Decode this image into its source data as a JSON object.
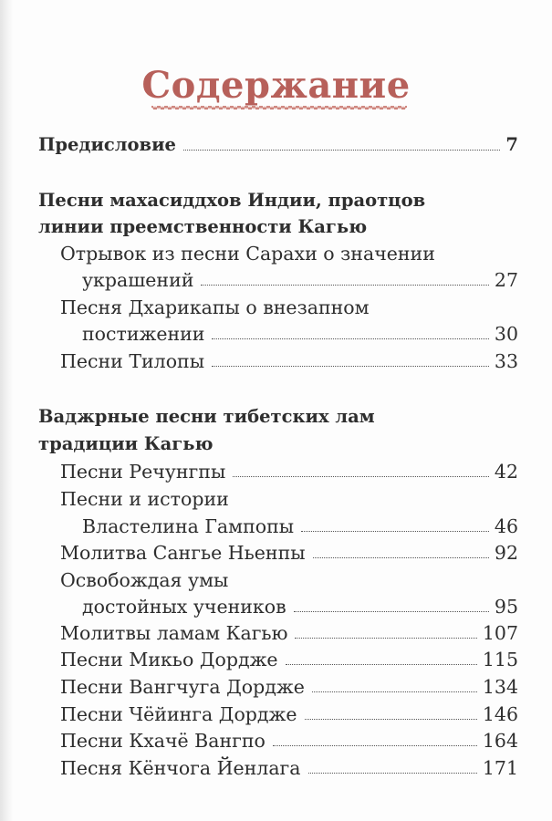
{
  "title": "Содержание",
  "entries": [
    {
      "text": "Предисловие",
      "page": "7",
      "bold": true,
      "indent": 0
    },
    {
      "text": "Песни махасиддхов Индии, праотцов",
      "page": "",
      "bold": true,
      "indent": 0
    },
    {
      "text": "линии преемственности Кагью",
      "page": "",
      "bold": true,
      "indent": 0
    },
    {
      "text": "Отрывок из песни Сарахи о значении",
      "page": "",
      "bold": false,
      "indent": 1
    },
    {
      "text": "украшений",
      "page": "27",
      "bold": false,
      "indent": 2
    },
    {
      "text": "Песня Дхарикапы о внезапном",
      "page": "",
      "bold": false,
      "indent": 1
    },
    {
      "text": "постижении",
      "page": "30",
      "bold": false,
      "indent": 2
    },
    {
      "text": "Песни Тилопы",
      "page": "33",
      "bold": false,
      "indent": 1
    },
    {
      "text": "Ваджрные песни тибетских лам",
      "page": "",
      "bold": true,
      "indent": 0
    },
    {
      "text": "традиции Кагью",
      "page": "",
      "bold": true,
      "indent": 0
    },
    {
      "text": "Песни Речунгпы",
      "page": "42",
      "bold": false,
      "indent": 1
    },
    {
      "text": "Песни и истории",
      "page": "",
      "bold": false,
      "indent": 1
    },
    {
      "text": "Властелина Гампопы",
      "page": "46",
      "bold": false,
      "indent": 2
    },
    {
      "text": "Молитва Сангье Ньенпы",
      "page": "92",
      "bold": false,
      "indent": 1
    },
    {
      "text": "Освобождая умы",
      "page": "",
      "bold": false,
      "indent": 1
    },
    {
      "text": "достойных учеников",
      "page": "95",
      "bold": false,
      "indent": 2
    },
    {
      "text": "Молитвы ламам Кагью",
      "page": "107",
      "bold": false,
      "indent": 1
    },
    {
      "text": "Песни Микьо Дордже",
      "page": "115",
      "bold": false,
      "indent": 1
    },
    {
      "text": "Песни Вангчуга Дордже",
      "page": "134",
      "bold": false,
      "indent": 1
    },
    {
      "text": "Песни Чёйинга Дордже",
      "page": "146",
      "bold": false,
      "indent": 1
    },
    {
      "text": "Песни Кхачё Вангпо",
      "page": "164",
      "bold": false,
      "indent": 1
    },
    {
      "text": "Песня Кёнчога Йенлага",
      "page": "171",
      "bold": false,
      "indent": 1
    }
  ],
  "colors": {
    "title": "#b7605a",
    "text": "#2e2e2e"
  }
}
